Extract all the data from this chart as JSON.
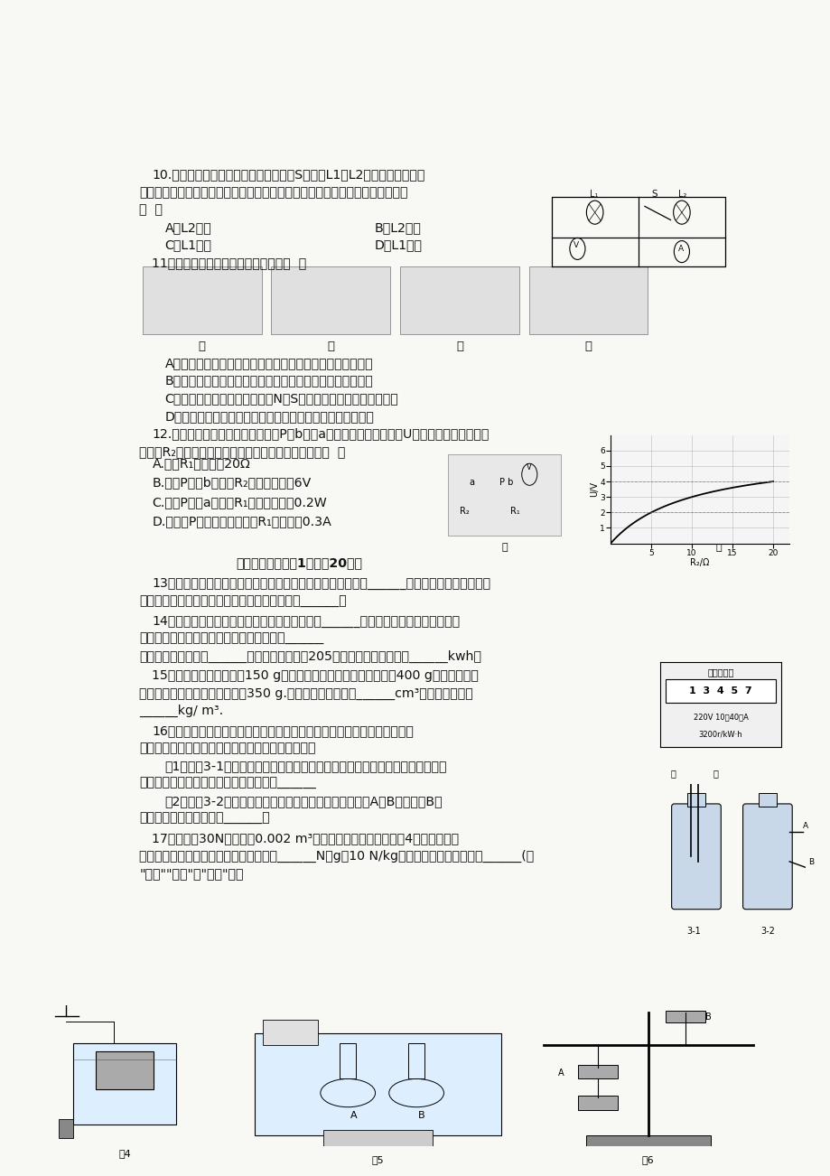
{
  "page_bg": "#f8f8f5",
  "text_color": "#111111",
  "lm": 0.055,
  "lh": 0.0195,
  "fs": 10.2,
  "q10_line1": "10.如图电路，电源电压不变，闭合开关S后，灯L1和L2均发光，过了一段",
  "q10_line2": "时间，一盏灯突然熄灭，而电流表和电压表的示数都不变，则发生的故障可能是",
  "q10_line3": "（  ）",
  "q10_A": "A．L2断路",
  "q10_B": "B．L2短路",
  "q10_C": "C．L1断路",
  "q10_D": "D．L1短路",
  "q11_title": "11．下列四幅图对应的说法正确的是（  ）",
  "q11_labels": [
    "甲",
    "乙",
    "丙",
    "丁"
  ],
  "q11_A": "A．图甲：通电导线周围存在磁场，将小磁针移走，磁场消失",
  "q11_B": "B．图乙：电流一定时，电磁铁磁性的强弱与线圈的匝数有关",
  "q11_C": "C．图丙：改变电流方向并对调N、S极，导体棒摆动方向随之改变",
  "q11_D": "D．图丁：只要导体棒在磁场中运动，就一定会产生感应电流",
  "q12_line1": "12.在如图甲所示的电路中，当滑片P由b移到a的过程中，电压表示数U及滑动变阻器接入电路",
  "q12_line2": "的电阻R₂的变化情况如图乙所示。下列说法正确的是（  ）",
  "q12_A": "A.电阻R₁的阻值为20Ω",
  "q12_B": "B.滑片P移到b端时，R₂两端的电压为6V",
  "q12_C": "C.滑片P移到a端时，R₁消耗的功率为0.2W",
  "q12_D": "D.当滑片P移到中点时，通过R₁的电流为0.3A",
  "sec2_title": "二、填空题（每空1分，共20分）",
  "q13_line1": "13．音乐会上，演员正在吹奏笛子，笛子发声是因为空气柱在______，吹奏过程中，演员不断",
  "q13_line2": "调整手指在笛子上的按压位置是为了改变声音的______．",
  "q14_line1": "14．家庭电路中，开关与所控制的用电器之间是______连接的；如右图所示为小明家",
  "q14_line2": "电能表月初的表盘图片，它是测量家庭消耗______",
  "q14_line3": "的仪表，额定电压为______伏，本月他家用电205度，则电度表上显示为______kwh。",
  "q15_line1": "15．一个空瓶子的质量是150 g，当装满水时，瓶和水的总质量是400 g；当装满另一",
  "q15_line2": "种液体时，瓶和液体的总质量是350 g.则这个瓶子的容积是______cm³，液体的密度是",
  "q15_line3": "______kg/ m³.",
  "q16_line1": "16．物理与生活总是密切相关，很多有趣的物理实验也可以助身边的用品进",
  "q16_line2": "行．以下就是小明利用矿泉水瓶进行的一些小实验：",
  "q16_line3": "（1）如图3-1所示，矿泉水瓶中装满水后插入吸管甲，用另一吸管乙向吸管甲上",
  "q16_line4": "方吹气，吸管甲中水面会上升，这是因为______",
  "q16_line5": "（2）如图3-2所示，在矿泉水瓶上扎两个相同大小的小孔A和B，发现从B孔",
  "q16_line6": "喷出的水较急，这是因为______。",
  "q17_line1": "17．一个重30N、体积为0.002 m³的物体用绳子悬挂着，如图4所示，现将物",
  "q17_line2": "体浸没在烧杯的水中，物体受到的浮力是______N（g取10 N/kg）．释放绳子后，物体将______(填",
  "q17_line3": "\"上浮\"\"悬浮\"或\"下沉\"）．",
  "fig4_label": "图4",
  "fig5_label": "图5",
  "fig6_label": "图6",
  "meter_title": "单项电度表",
  "meter_digits": "1  3  4  5  7",
  "meter_spec1": "220V 10（40）A",
  "meter_spec2": "3200r/kW·h"
}
